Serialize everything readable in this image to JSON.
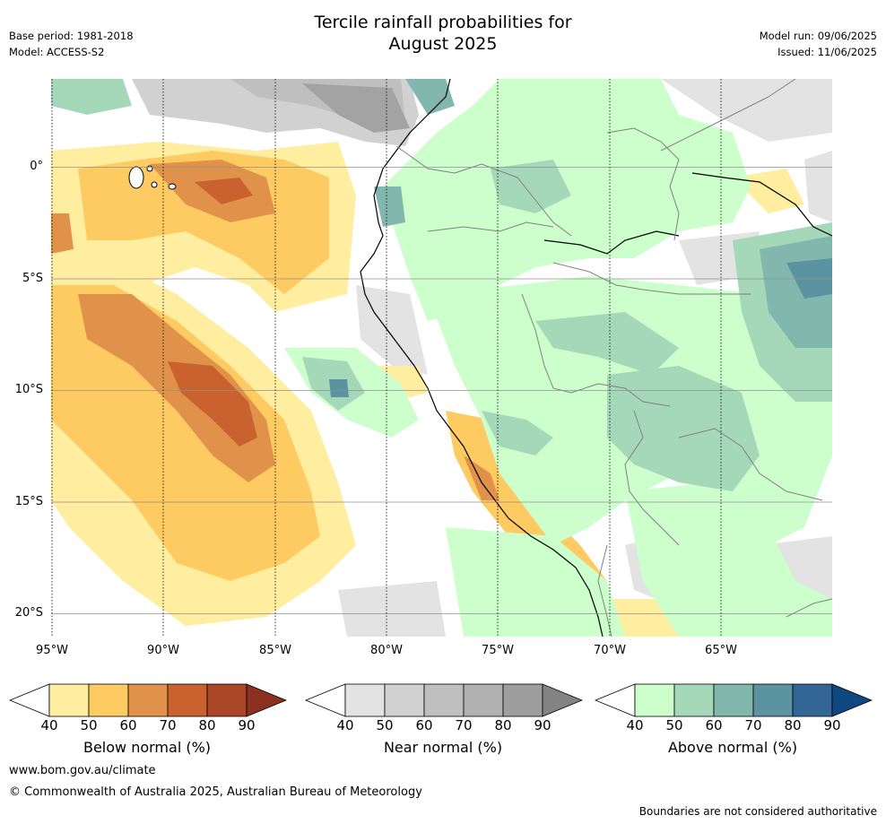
{
  "title_line1": "Tercile rainfall probabilities for",
  "title_line2": "August 2025",
  "base_period": "Base period: 1981-2018",
  "model": "Model: ACCESS-S2",
  "model_run": "Model run: 09/06/2025",
  "issued": "Issued: 11/06/2025",
  "lat_labels": [
    "0°",
    "5°S",
    "10°S",
    "15°S",
    "20°S"
  ],
  "lon_labels": [
    "95°W",
    "90°W",
    "85°W",
    "80°W",
    "75°W",
    "70°W",
    "65°W"
  ],
  "colorbars": [
    {
      "label": "Below normal (%)",
      "ticks": [
        "40",
        "50",
        "60",
        "70",
        "80",
        "90"
      ],
      "colors": [
        "#ffffff",
        "#ffeda0",
        "#fecb63",
        "#e0924a",
        "#c9622e",
        "#ab4726",
        "#8c3020"
      ]
    },
    {
      "label": "Near normal (%)",
      "ticks": [
        "40",
        "50",
        "60",
        "70",
        "80",
        "90"
      ],
      "colors": [
        "#ffffff",
        "#e3e3e3",
        "#d1d1d1",
        "#bfbfbf",
        "#b0b0b0",
        "#9e9e9e",
        "#838383"
      ]
    },
    {
      "label": "Above normal (%)",
      "ticks": [
        "40",
        "50",
        "60",
        "70",
        "80",
        "90"
      ],
      "colors": [
        "#ffffff",
        "#ccffcc",
        "#a5d8b9",
        "#82b7ae",
        "#5c93a1",
        "#336597",
        "#0f4880"
      ]
    }
  ],
  "website": "www.bom.gov.au/climate",
  "copyright": "© Commonwealth of Australia 2025, Australian Bureau of Meteorology",
  "disclaimer": "Boundaries are not considered authoritative"
}
